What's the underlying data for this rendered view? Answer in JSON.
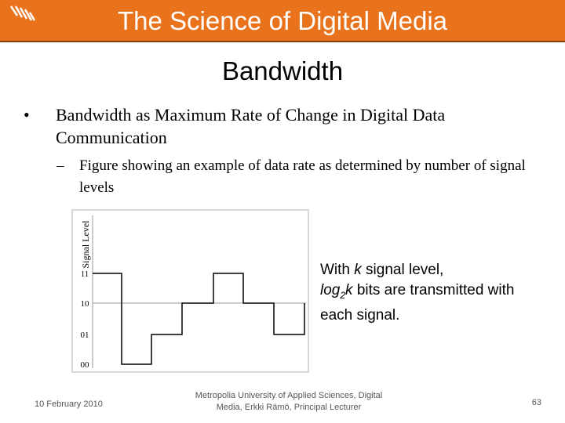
{
  "header": {
    "title": "The Science of Digital Media"
  },
  "slide": {
    "title": "Bandwidth",
    "bullets": [
      {
        "text": "Bandwidth as Maximum Rate of Change in Digital Data Communication",
        "sub": [
          "Figure showing an example of data rate as determined by number of signal levels"
        ]
      }
    ]
  },
  "figure": {
    "y_label": "Signal Level",
    "levels": [
      "11",
      "10",
      "01",
      "00"
    ]
  },
  "callout": {
    "parts": [
      "With ",
      "k",
      " signal level, ",
      "log",
      "2",
      "k",
      " bits are transmitted with each signal."
    ]
  },
  "footer": {
    "date": "10 February 2010",
    "org": "Metropolia University of Applied Sciences, Digital Media, Erkki Rämö, Principal Lecturer",
    "page": "63"
  }
}
